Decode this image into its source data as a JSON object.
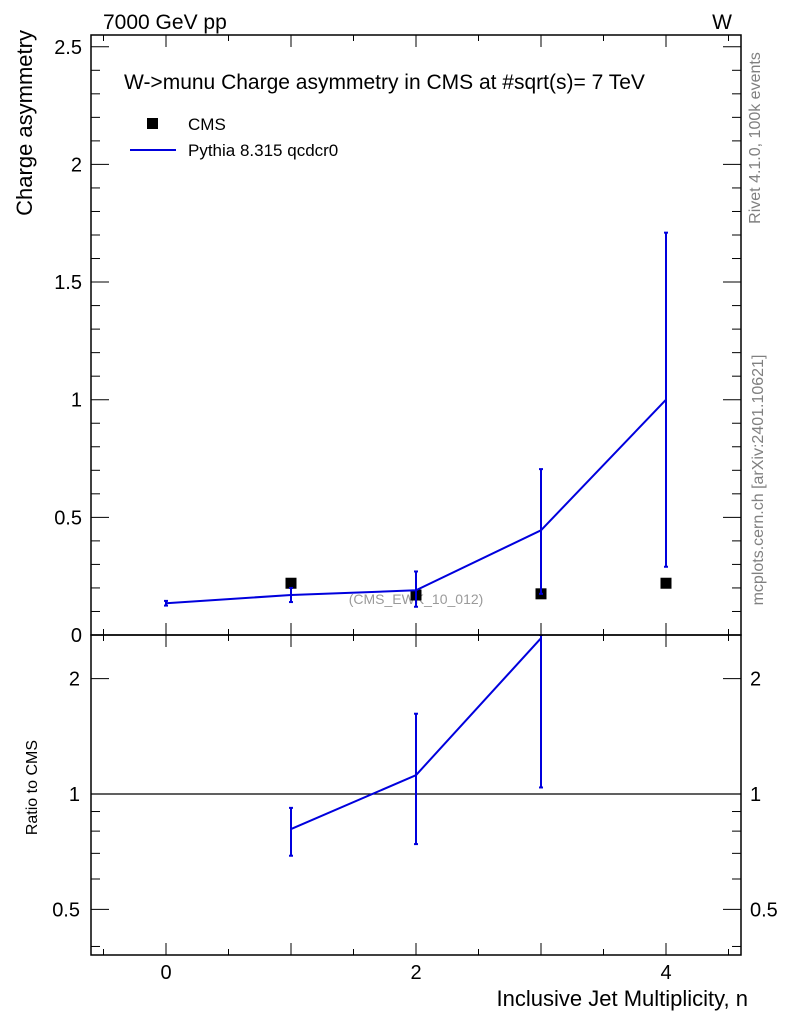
{
  "header": {
    "left": "7000 GeV pp",
    "right": "W",
    "side_top": "Rivet 4.1.0,  100k events",
    "side_bottom": "mcplots.cern.ch [arXiv:2401.10621]"
  },
  "chart_data": {
    "type": "line",
    "title": "W->munu Charge asymmetry in CMS at #sqrt(s)= 7 TeV",
    "watermark": "(CMS_EWK_10_012)",
    "xlabel": "Inclusive Jet Multiplicity, n",
    "ylabel": "Charge asymmetry",
    "ratio_ylabel": "Ratio to CMS",
    "xlim": [
      -0.6,
      4.6
    ],
    "ylim": [
      0,
      2.55
    ],
    "ratio_ylim": [
      0.38,
      2.6
    ],
    "x_ticks": [
      {
        "v": 0,
        "label": "0"
      },
      {
        "v": 2,
        "label": "2"
      },
      {
        "v": 4,
        "label": "4"
      }
    ],
    "y_ticks": [
      {
        "v": 0,
        "label": "0"
      },
      {
        "v": 0.5,
        "label": "0.5"
      },
      {
        "v": 1,
        "label": "1"
      },
      {
        "v": 1.5,
        "label": "1.5"
      },
      {
        "v": 2,
        "label": "2"
      },
      {
        "v": 2.5,
        "label": "2.5"
      }
    ],
    "ratio_ticks": [
      {
        "v": 0.5,
        "label": "0.5"
      },
      {
        "v": 1,
        "label": "1"
      },
      {
        "v": 2,
        "label": "2"
      }
    ],
    "legend": [
      {
        "name": "CMS",
        "kind": "marker",
        "color": "#000000"
      },
      {
        "name": "Pythia 8.315 qcdcr0",
        "kind": "line",
        "color": "#0000dd"
      }
    ],
    "series": [
      {
        "name": "CMS",
        "color": "#000000",
        "x": [
          1,
          2,
          3,
          4
        ],
        "y": [
          0.22,
          0.17,
          0.175,
          0.22
        ]
      },
      {
        "name": "Pythia 8.315 qcdcr0",
        "color": "#0000dd",
        "x": [
          0,
          1,
          2,
          3,
          4
        ],
        "y": [
          0.135,
          0.17,
          0.19,
          0.445,
          1.0
        ],
        "err_lo": [
          0.01,
          0.03,
          0.07,
          0.27,
          0.71
        ],
        "err_hi": [
          0.01,
          0.03,
          0.08,
          0.26,
          0.71
        ]
      }
    ],
    "ratio": {
      "reference_line": 1,
      "x": [
        1,
        2,
        3
      ],
      "y": [
        0.81,
        1.12,
        2.55
      ],
      "err_lo": [
        0.12,
        0.38,
        1.51
      ],
      "err_hi": [
        0.11,
        0.5,
        0.05
      ]
    }
  }
}
